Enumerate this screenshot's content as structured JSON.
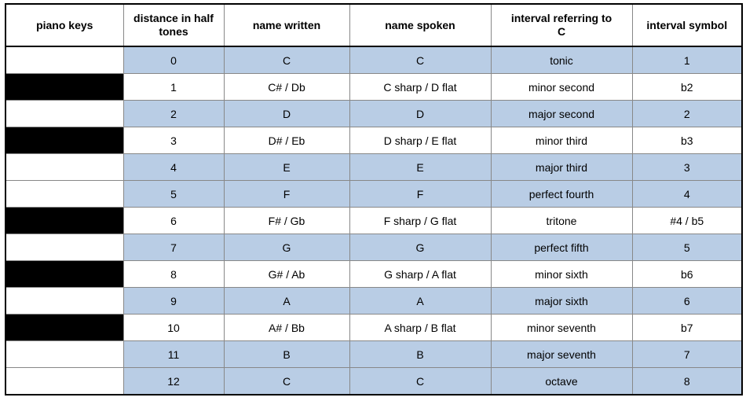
{
  "table": {
    "columns": [
      "piano keys",
      "distance in half tones",
      "name written",
      "name spoken",
      "interval referring to C",
      "interval symbol"
    ],
    "header_two_line": {
      "1": [
        "distance in half",
        "tones"
      ],
      "4": [
        "interval referring to",
        "C"
      ]
    },
    "row_shade_color": "#b9cde5",
    "row_plain_color": "#ffffff",
    "key_black_color": "#000000",
    "key_white_color": "#ffffff",
    "border_outer_color": "#000000",
    "border_inner_color": "#888888",
    "font_family": "Arial",
    "font_size_pt": 11,
    "header_font_size_pt": 11,
    "rows": [
      {
        "key": "white",
        "shaded": true,
        "distance": "0",
        "written": "C",
        "spoken": "C",
        "interval": "tonic",
        "symbol": "1"
      },
      {
        "key": "black",
        "shaded": false,
        "distance": "1",
        "written": "C# / Db",
        "spoken": "C sharp / D flat",
        "interval": "minor second",
        "symbol": "b2"
      },
      {
        "key": "white",
        "shaded": true,
        "distance": "2",
        "written": "D",
        "spoken": "D",
        "interval": "major second",
        "symbol": "2"
      },
      {
        "key": "black",
        "shaded": false,
        "distance": "3",
        "written": "D# / Eb",
        "spoken": "D sharp / E flat",
        "interval": "minor third",
        "symbol": "b3"
      },
      {
        "key": "white",
        "shaded": true,
        "distance": "4",
        "written": "E",
        "spoken": "E",
        "interval": "major third",
        "symbol": "3"
      },
      {
        "key": "white",
        "shaded": true,
        "distance": "5",
        "written": "F",
        "spoken": "F",
        "interval": "perfect fourth",
        "symbol": "4"
      },
      {
        "key": "black",
        "shaded": false,
        "distance": "6",
        "written": "F# / Gb",
        "spoken": "F sharp / G flat",
        "interval": "tritone",
        "symbol": "#4 / b5"
      },
      {
        "key": "white",
        "shaded": true,
        "distance": "7",
        "written": "G",
        "spoken": "G",
        "interval": "perfect fifth",
        "symbol": "5"
      },
      {
        "key": "black",
        "shaded": false,
        "distance": "8",
        "written": "G# / Ab",
        "spoken": "G sharp / A flat",
        "interval": "minor sixth",
        "symbol": "b6"
      },
      {
        "key": "white",
        "shaded": true,
        "distance": "9",
        "written": "A",
        "spoken": "A",
        "interval": "major sixth",
        "symbol": "6"
      },
      {
        "key": "black",
        "shaded": false,
        "distance": "10",
        "written": "A# / Bb",
        "spoken": "A sharp / B flat",
        "interval": "minor seventh",
        "symbol": "b7"
      },
      {
        "key": "white",
        "shaded": true,
        "distance": "11",
        "written": "B",
        "spoken": "B",
        "interval": "major seventh",
        "symbol": "7"
      },
      {
        "key": "white",
        "shaded": true,
        "distance": "12",
        "written": "C",
        "spoken": "C",
        "interval": "octave",
        "symbol": "8"
      }
    ]
  }
}
